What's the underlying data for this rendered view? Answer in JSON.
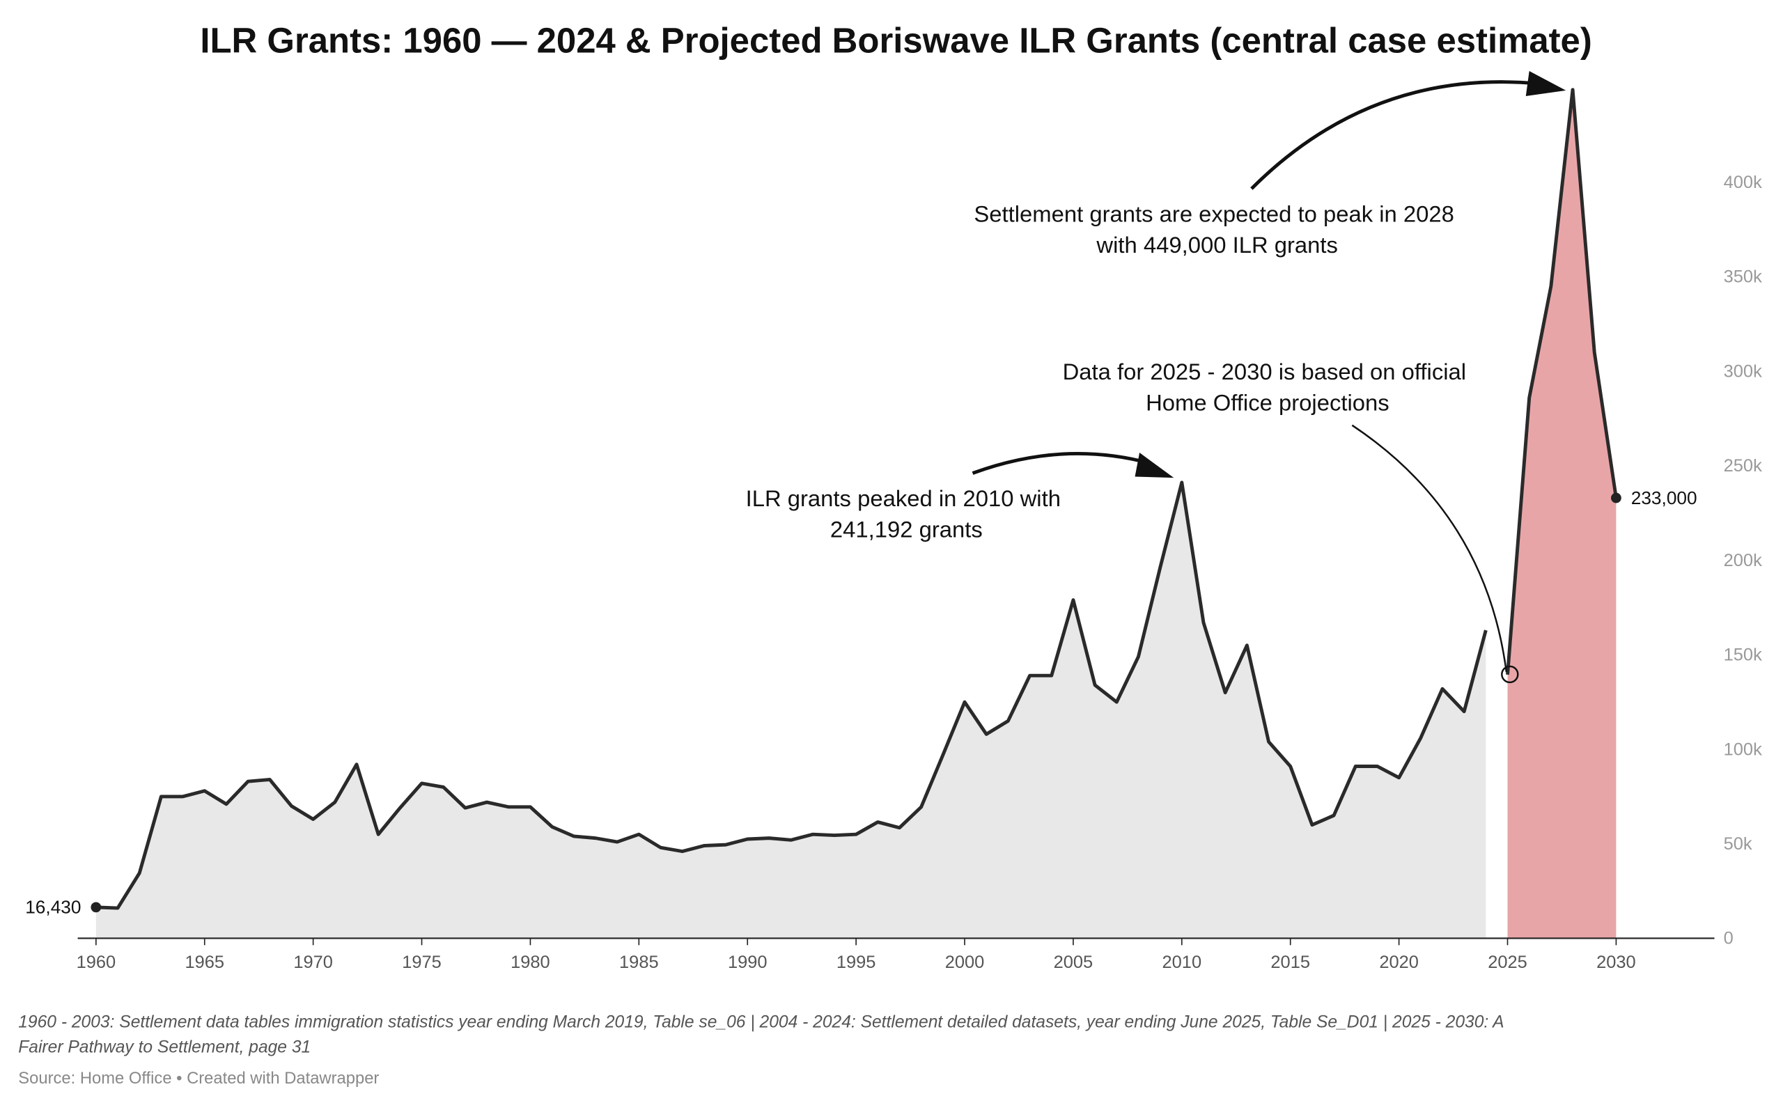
{
  "chart_data": {
    "type": "area",
    "title": "ILR Grants: 1960 — 2024 & Projected Boriswave ILR Grants (central case estimate)",
    "xlabel": "",
    "ylabel": "",
    "xlim": [
      1959,
      2034
    ],
    "ylim": [
      0,
      450000
    ],
    "x_ticks": [
      "1960",
      "1965",
      "1970",
      "1975",
      "1980",
      "1985",
      "1990",
      "1995",
      "2000",
      "2005",
      "2010",
      "2015",
      "2020",
      "2025",
      "2030"
    ],
    "y_ticks": [
      {
        "value": 0,
        "label": "0"
      },
      {
        "value": 50000,
        "label": "50k"
      },
      {
        "value": 100000,
        "label": "100k"
      },
      {
        "value": 150000,
        "label": "150k"
      },
      {
        "value": 200000,
        "label": "200k"
      },
      {
        "value": 250000,
        "label": "250k"
      },
      {
        "value": 300000,
        "label": "300k"
      },
      {
        "value": 350000,
        "label": "350k"
      },
      {
        "value": 400000,
        "label": "400k"
      }
    ],
    "y_axis_position": "right",
    "grid": false,
    "series": [
      {
        "color": "#e8e8e8",
        "line_color": "#2a2a2a",
        "x": [
          1960,
          1961,
          1962,
          1963,
          1964,
          1965,
          1966,
          1967,
          1968,
          1969,
          1970,
          1971,
          1972,
          1973,
          1974,
          1975,
          1976,
          1977,
          1978,
          1979,
          1980,
          1981,
          1982,
          1983,
          1984,
          1985,
          1986,
          1987,
          1988,
          1989,
          1990,
          1991,
          1992,
          1993,
          1994,
          1995,
          1996,
          1997,
          1998,
          1999,
          2000,
          2001,
          2002,
          2003,
          2004,
          2005,
          2006,
          2007,
          2008,
          2009,
          2010,
          2011,
          2012,
          2013,
          2014,
          2015,
          2016,
          2017,
          2018,
          2019,
          2020,
          2021,
          2022,
          2023,
          2024
        ],
        "values": [
          16430,
          16000,
          34500,
          75000,
          75000,
          78000,
          71000,
          83000,
          84000,
          70000,
          63000,
          72000,
          92000,
          55000,
          69000,
          82000,
          80000,
          69000,
          72000,
          69500,
          69500,
          59000,
          54000,
          53000,
          51000,
          55000,
          48000,
          46000,
          49000,
          49500,
          52500,
          53000,
          52000,
          55000,
          54500,
          55000,
          61500,
          58500,
          69500,
          97000,
          125000,
          108000,
          115000,
          139000,
          139000,
          179000,
          134000,
          125000,
          149000,
          196000,
          241192,
          167000,
          130000,
          155000,
          104000,
          91000,
          60000,
          65000,
          91000,
          91000,
          85000,
          106000,
          132000,
          120000,
          163000
        ]
      },
      {
        "color": "#e8a5a7",
        "line_color": "#2a2a2a",
        "x": [
          2025,
          2026,
          2027,
          2028,
          2029,
          2030
        ],
        "values": [
          139500,
          286000,
          345000,
          449000,
          310000,
          233000
        ]
      }
    ],
    "point_labels": {
      "start": "16,430",
      "end": "233,000"
    },
    "annotations": {
      "peak_2010": [
        "ILR grants peaked in 2010 with",
        "241,192 grants"
      ],
      "projection_note": [
        "Data for 2025 - 2030 is based on official",
        "Home Office projections"
      ],
      "peak_2028": [
        "Settlement grants are expected to peak in 2028",
        "with 449,000 ILR grants"
      ]
    }
  },
  "footer": {
    "notes": [
      "1960 - 2003: Settlement data tables immigration statistics year ending March 2019, Table se_06 | 2004 - 2024: Settlement detailed datasets, year ending June 2025, Table Se_D01 | 2025 - 2030: A",
      "Fairer Pathway to Settlement, page 31"
    ],
    "source": "Source: Home Office • Created with Datawrapper"
  }
}
